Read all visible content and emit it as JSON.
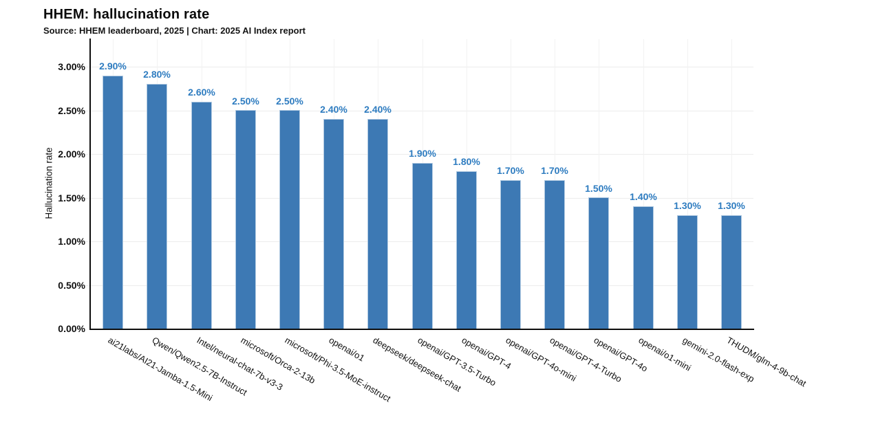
{
  "header": {
    "title": "HHEM: hallucination rate",
    "subtitle": "Source: HHEM leaderboard, 2025 | Chart: 2025 AI Index report"
  },
  "chart_data": {
    "type": "bar",
    "title": "HHEM: hallucination rate",
    "subtitle": "Source: HHEM leaderboard, 2025 | Chart: 2025 AI Index report",
    "xlabel": "",
    "ylabel": "Hallucination rate",
    "categories": [
      "ai21labs/AI21-Jamba-1.5-Mini",
      "Qwen/Qwen2.5-7B-Instruct",
      "Intel/neural-chat-7b-v3-3",
      "microsoft/Orca-2-13b",
      "microsoft/Phi-3.5-MoE-instruct",
      "openai/o1",
      "deepseek/deepseek-chat",
      "openai/GPT-3.5-Turbo",
      "openai/GPT-4",
      "openai/GPT-4o-mini",
      "openai/GPT-4-Turbo",
      "openai/GPT-4o",
      "openai/o1-mini",
      "gemini-2.0-flash-exp",
      "THUDM/glm-4-9b-chat"
    ],
    "values": [
      2.9,
      2.8,
      2.6,
      2.5,
      2.5,
      2.4,
      2.4,
      1.9,
      1.8,
      1.7,
      1.7,
      1.5,
      1.4,
      1.3,
      1.3
    ],
    "value_labels": [
      "2.90%",
      "2.80%",
      "2.60%",
      "2.50%",
      "2.50%",
      "2.40%",
      "2.40%",
      "1.90%",
      "1.80%",
      "1.70%",
      "1.70%",
      "1.50%",
      "1.40%",
      "1.30%",
      "1.30%"
    ],
    "yticks": {
      "values": [
        0,
        0.5,
        1,
        1.5,
        2,
        2.5,
        3
      ],
      "labels": [
        "0.00%",
        "0.50%",
        "1.00%",
        "1.50%",
        "2.00%",
        "2.50%",
        "3.00%"
      ]
    },
    "ylim": [
      0,
      3.3
    ],
    "grid": true,
    "legend_position": "none",
    "x_tick_angle_deg": 30,
    "colors": {
      "bar_fill": "#3d79b4",
      "bar_border": "#b3cbe2",
      "value_label": "#2e7cc0",
      "axis_line": "#0d0d0d",
      "hgrid_line": "#ececec",
      "vgrid_line": "#f2f2f2",
      "text": "#111111"
    }
  }
}
